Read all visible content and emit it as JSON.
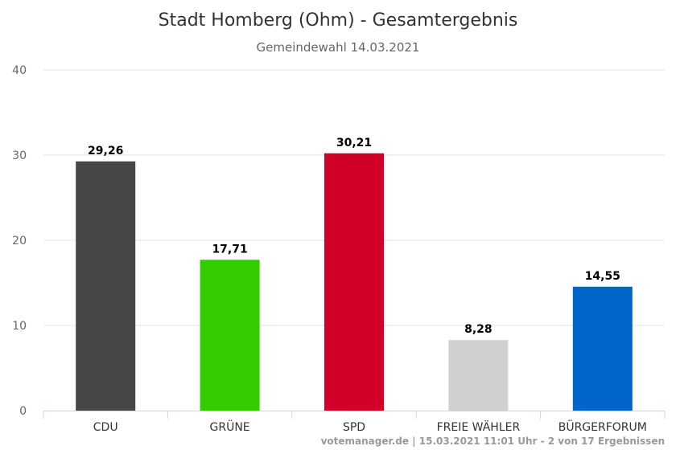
{
  "chart_data": {
    "type": "bar",
    "title": "Stadt Homberg (Ohm) - Gesamtergebnis",
    "subtitle": "Gemeindewahl 14.03.2021",
    "categories": [
      "CDU",
      "GRÜNE",
      "SPD",
      "FREIE WÄHLER",
      "BÜRGERFORUM"
    ],
    "values": [
      29.26,
      17.71,
      30.21,
      8.28,
      14.55
    ],
    "value_labels": [
      "29,26",
      "17,71",
      "30,21",
      "8,28",
      "14,55"
    ],
    "colors": [
      "#464646",
      "#33cc00",
      "#d10029",
      "#d0d0d0",
      "#0066cc"
    ],
    "ylim": [
      0,
      40
    ],
    "yticks": [
      0,
      10,
      20,
      30,
      40
    ],
    "xlabel": "",
    "ylabel": "",
    "grid": true,
    "legend": "none"
  },
  "credits": "votemanager.de | 15.03.2021 11:01 Uhr - 2 von 17 Ergebnissen"
}
